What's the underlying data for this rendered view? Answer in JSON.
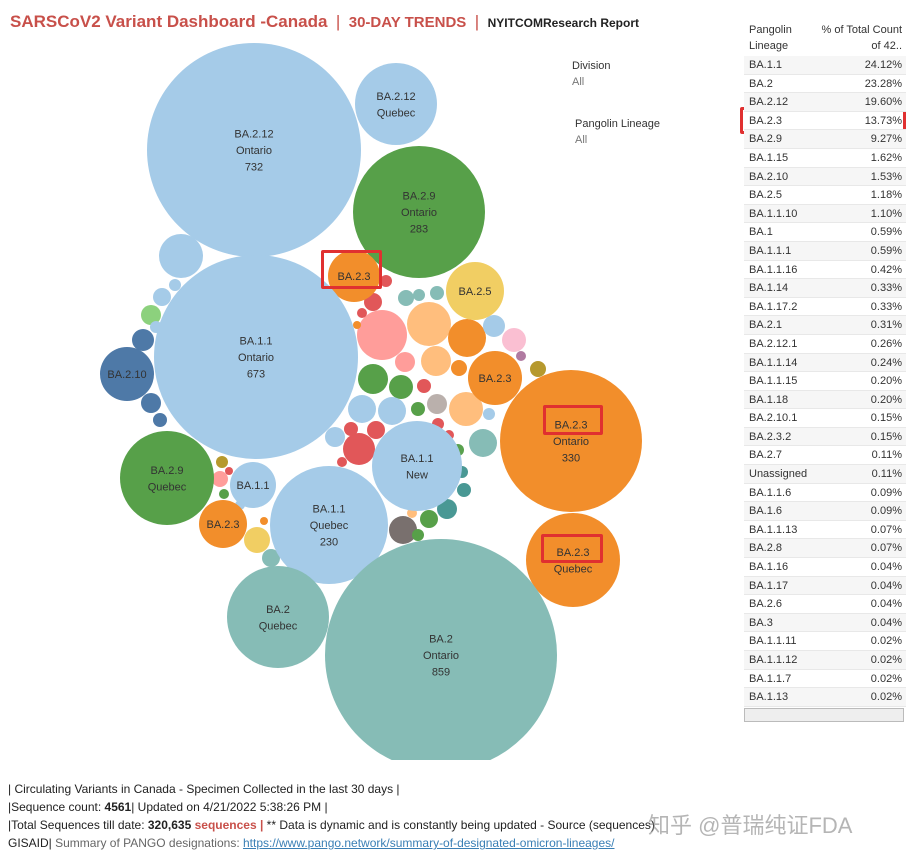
{
  "header": {
    "title": "SARSCoV2 Variant Dashboard -Canada",
    "separator": "|",
    "trends": "30-DAY TRENDS",
    "separator2": "|",
    "report": "NYITCOMResearch Report"
  },
  "filters": {
    "division_label": "Division",
    "division_value": "All",
    "lineage_label": "Pangolin Lineage",
    "lineage_value": "All"
  },
  "bubbles": [
    {
      "lines": [
        "BA.2.12",
        "Ontario",
        "732"
      ],
      "color": "#a5cbe8"
    },
    {
      "lines": [
        "BA.2.12",
        "Quebec"
      ],
      "color": "#a5cbe8"
    },
    {
      "lines": [
        "BA.2.9",
        "Ontario",
        "283"
      ],
      "color": "#57a049"
    },
    {
      "lines": [
        "BA.2.3"
      ],
      "color": "#f28e2b"
    },
    {
      "lines": [
        "BA.2.5"
      ],
      "color": "#f1ce63"
    },
    {
      "lines": [
        "BA.1.1",
        "Ontario",
        "673"
      ],
      "color": "#a5cbe8"
    },
    {
      "lines": [
        "BA.2.10"
      ],
      "color": "#4e79a7"
    },
    {
      "lines": [
        "BA.2.3"
      ],
      "color": "#f28e2b"
    },
    {
      "lines": [
        "BA.2.3",
        "Ontario",
        "330"
      ],
      "color": "#f28e2b"
    },
    {
      "lines": [
        "BA.1.1",
        "New"
      ],
      "color": "#a5cbe8"
    },
    {
      "lines": [
        "BA.2.9",
        "Quebec"
      ],
      "color": "#57a049"
    },
    {
      "lines": [
        "BA.1.1"
      ],
      "color": "#a5cbe8"
    },
    {
      "lines": [
        "BA.2.3"
      ],
      "color": "#f28e2b"
    },
    {
      "lines": [
        "BA.1.1",
        "Quebec",
        "230"
      ],
      "color": "#a5cbe8"
    },
    {
      "lines": [
        "BA.2.3",
        "Quebec"
      ],
      "color": "#f28e2b"
    },
    {
      "lines": [
        "BA.2",
        "Quebec"
      ],
      "color": "#86bcb6"
    },
    {
      "lines": [
        "BA.2",
        "Ontario",
        "859"
      ],
      "color": "#86bcb6"
    }
  ],
  "table": {
    "col1_header": "Pangolin Lineage",
    "col2_header": "% of Total Count of 42..",
    "rows": [
      {
        "lineage": "BA.1.1",
        "pct": "24.12%"
      },
      {
        "lineage": "BA.2",
        "pct": "23.28%"
      },
      {
        "lineage": "BA.2.12",
        "pct": "19.60%"
      },
      {
        "lineage": "BA.2.3",
        "pct": "13.73%"
      },
      {
        "lineage": "BA.2.9",
        "pct": "9.27%"
      },
      {
        "lineage": "BA.1.15",
        "pct": "1.62%"
      },
      {
        "lineage": "BA.2.10",
        "pct": "1.53%"
      },
      {
        "lineage": "BA.2.5",
        "pct": "1.18%"
      },
      {
        "lineage": "BA.1.1.10",
        "pct": "1.10%"
      },
      {
        "lineage": "BA.1",
        "pct": "0.59%"
      },
      {
        "lineage": "BA.1.1.1",
        "pct": "0.59%"
      },
      {
        "lineage": "BA.1.1.16",
        "pct": "0.42%"
      },
      {
        "lineage": "BA.1.14",
        "pct": "0.33%"
      },
      {
        "lineage": "BA.1.17.2",
        "pct": "0.33%"
      },
      {
        "lineage": "BA.2.1",
        "pct": "0.31%"
      },
      {
        "lineage": "BA.2.12.1",
        "pct": "0.26%"
      },
      {
        "lineage": "BA.1.1.14",
        "pct": "0.24%"
      },
      {
        "lineage": "BA.1.1.15",
        "pct": "0.20%"
      },
      {
        "lineage": "BA.1.18",
        "pct": "0.20%"
      },
      {
        "lineage": "BA.2.10.1",
        "pct": "0.15%"
      },
      {
        "lineage": "BA.2.3.2",
        "pct": "0.15%"
      },
      {
        "lineage": "BA.2.7",
        "pct": "0.11%"
      },
      {
        "lineage": "Unassigned",
        "pct": "0.11%"
      },
      {
        "lineage": "BA.1.1.6",
        "pct": "0.09%"
      },
      {
        "lineage": "BA.1.6",
        "pct": "0.09%"
      },
      {
        "lineage": "BA.1.1.13",
        "pct": "0.07%"
      },
      {
        "lineage": "BA.2.8",
        "pct": "0.07%"
      },
      {
        "lineage": "BA.1.16",
        "pct": "0.04%"
      },
      {
        "lineage": "BA.1.17",
        "pct": "0.04%"
      },
      {
        "lineage": "BA.2.6",
        "pct": "0.04%"
      },
      {
        "lineage": "BA.3",
        "pct": "0.04%"
      },
      {
        "lineage": "BA.1.1.11",
        "pct": "0.02%"
      },
      {
        "lineage": "BA.1.1.12",
        "pct": "0.02%"
      },
      {
        "lineage": "BA.1.1.7",
        "pct": "0.02%"
      },
      {
        "lineage": "BA.1.13",
        "pct": "0.02%"
      }
    ]
  },
  "footer": {
    "line1": "| Circulating Variants in Canada - Specimen Collected in the last 30 days |",
    "line2_prefix": "|Sequence count: ",
    "sequence_count": "4561",
    "line2_suffix": "|  Updated on 4/21/2022 5:38:26 PM |",
    "line3_prefix": "|Total Sequences till date:  ",
    "total_sequences": "320,635",
    "sequences_word": "sequences |",
    "line3_suffix": " ** Data is dynamic and is constantly being updated - Source (sequences)",
    "gisaid": "GISAID|",
    "summary_label": " Summary of PANGO designations: ",
    "summary_link": "https://www.pango.network/summary-of-designated-omicron-lineages/"
  },
  "watermark": "知乎 @普瑞纯证FDA"
}
